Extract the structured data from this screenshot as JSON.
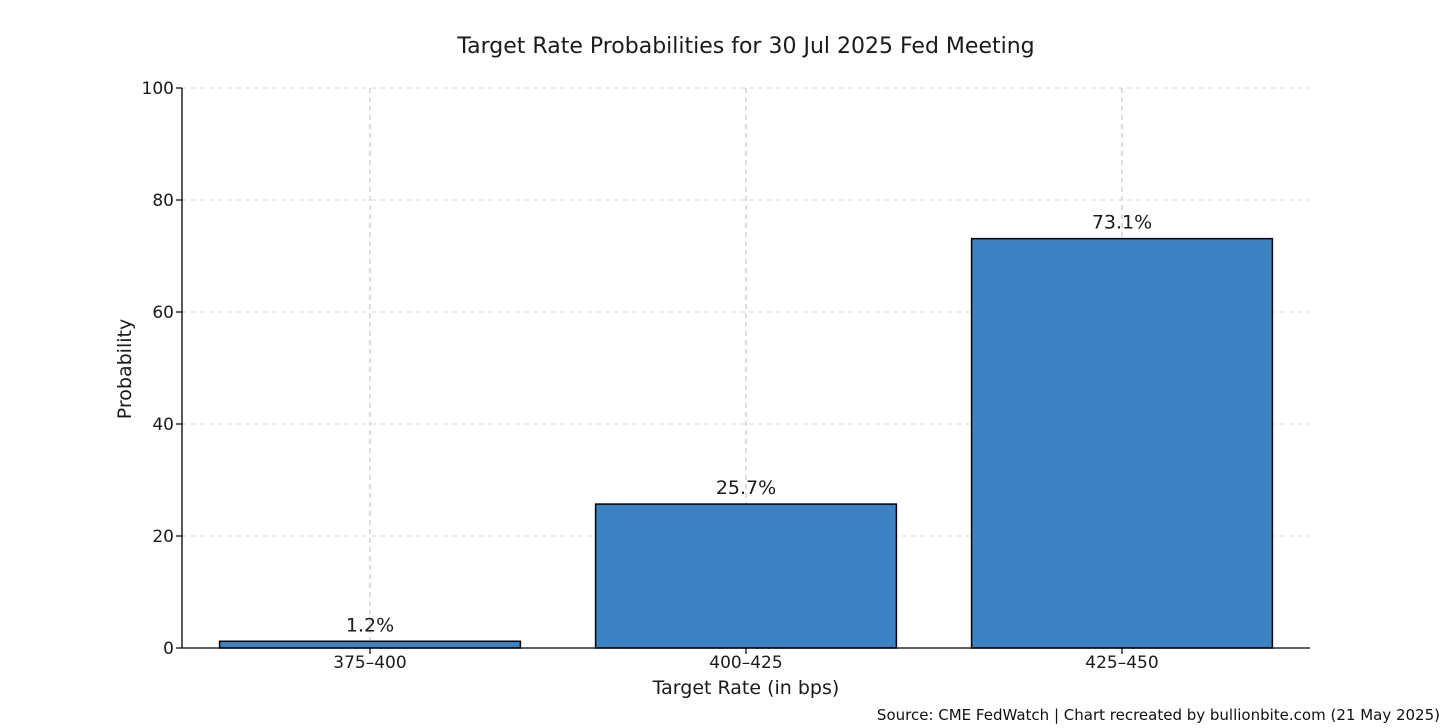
{
  "chart_data": {
    "type": "bar",
    "title": "Target Rate Probabilities for 30 Jul 2025 Fed Meeting",
    "xlabel": "Target Rate (in bps)",
    "ylabel": "Probability",
    "categories": [
      "375–400",
      "400–425",
      "425–450"
    ],
    "values": [
      1.2,
      25.7,
      73.1
    ],
    "data_labels": [
      "1.2%",
      "25.7%",
      "73.1%"
    ],
    "ylim": [
      0,
      100
    ],
    "yticks": [
      0,
      20,
      40,
      60,
      80,
      100
    ],
    "grid": true,
    "bar_color": "#2b78be",
    "bar_edge_color": "#000000"
  },
  "footer": {
    "source": "Source: CME FedWatch | Chart recreated by bullionbite.com (21 May 2025)"
  }
}
